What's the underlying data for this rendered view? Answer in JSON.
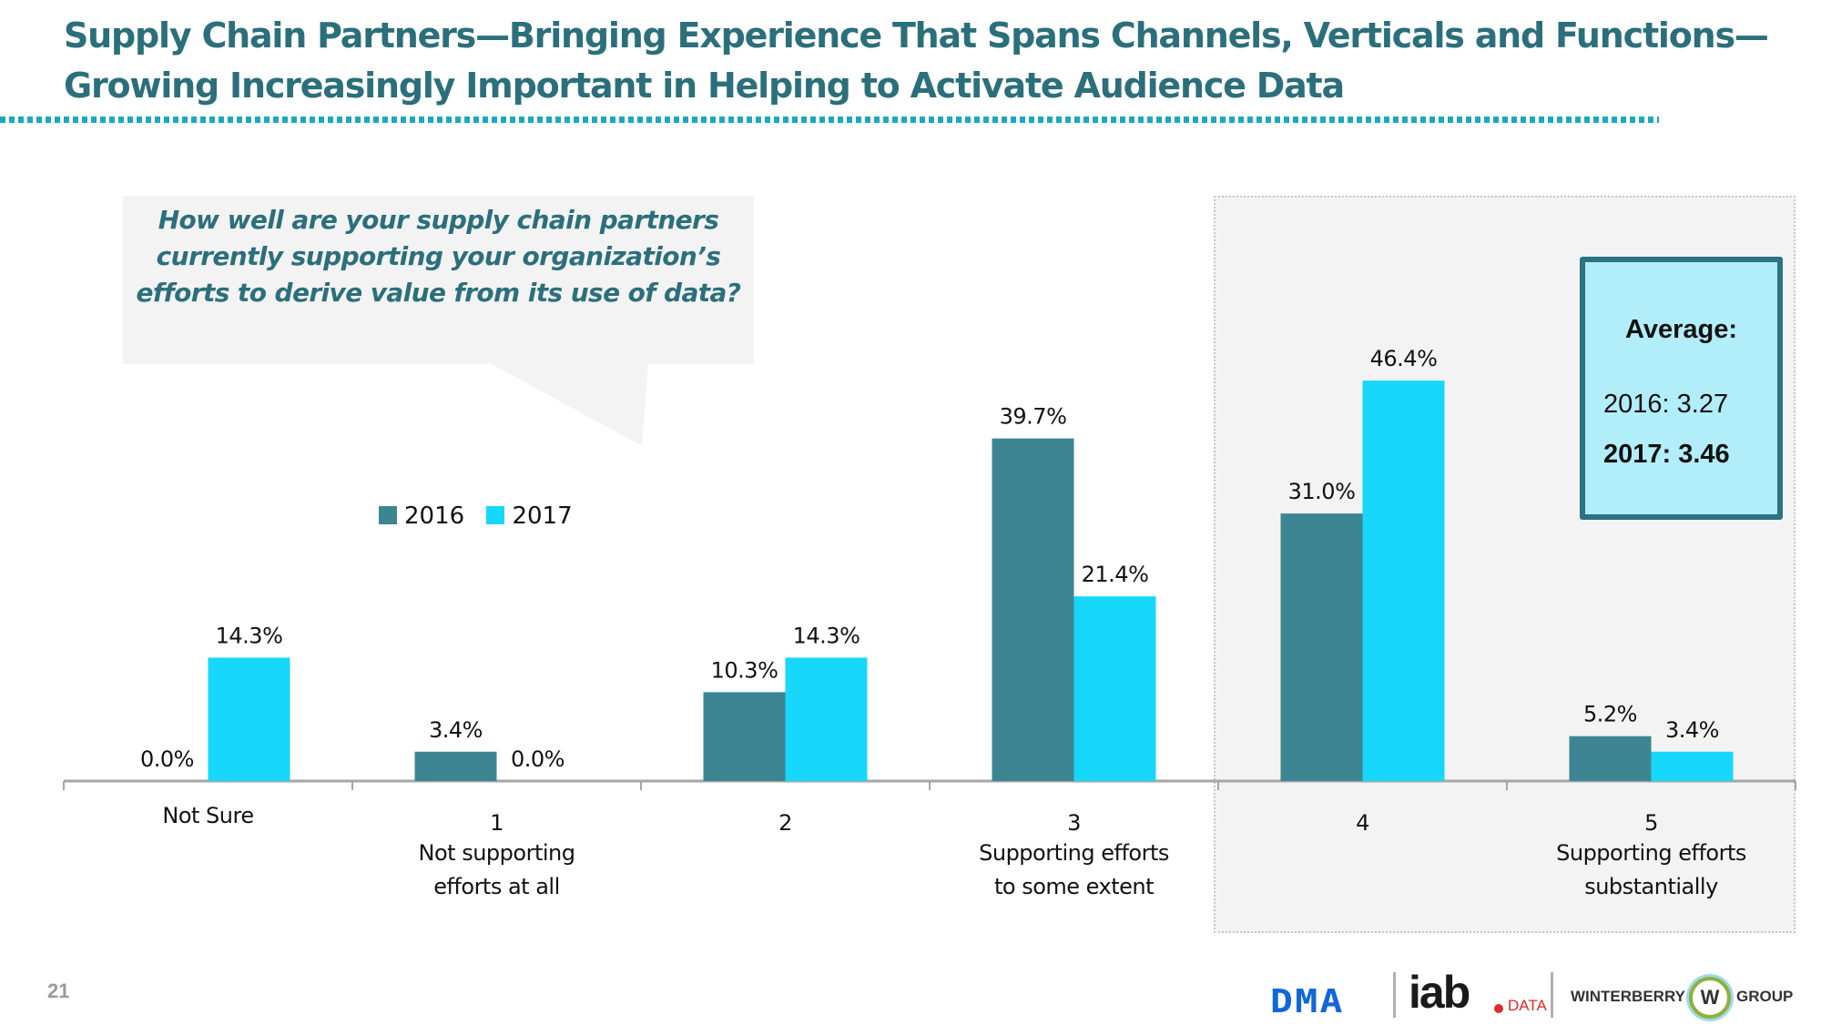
{
  "header": {
    "title_lines": [
      "Supply Chain Partners—Bringing Experience That Spans Channels, Verticals and Functions—",
      "Growing Increasingly Important in Helping to Activate Audience Data"
    ]
  },
  "callout": {
    "question_lines": [
      "How well are your supply chain partners",
      "currently supporting your organization’s",
      "efforts to derive value from its use of data?"
    ]
  },
  "average_box": {
    "title": "Average:",
    "line_2016": "2016: 3.27",
    "line_2017": "2017: 3.46"
  },
  "colors": {
    "series_2016": "#3d8593",
    "series_2017": "#17d7fb",
    "title": "#2b6f7b",
    "accent_dots": "#1ba8c4",
    "highlight_fill": "#f3f3f3",
    "avg_box_fill": "#b1eef9",
    "avg_box_border": "#2a7380"
  },
  "chart_data": {
    "type": "bar",
    "title": "",
    "xlabel": "",
    "ylabel": "",
    "ylim": [
      0,
      50
    ],
    "grid": false,
    "legend_position": "top-left",
    "categories": [
      [
        "Not Sure"
      ],
      [
        "1",
        "Not supporting",
        "efforts at all"
      ],
      [
        "2"
      ],
      [
        "3",
        "Supporting efforts",
        "to some extent"
      ],
      [
        "4"
      ],
      [
        "5",
        "Supporting efforts",
        "substantially"
      ]
    ],
    "series": [
      {
        "name": "2016",
        "values": [
          0.0,
          3.4,
          10.3,
          39.7,
          31.0,
          5.2
        ],
        "labels": [
          "0.0%",
          "3.4%",
          "10.3%",
          "39.7%",
          "31.0%",
          "5.2%"
        ]
      },
      {
        "name": "2017",
        "values": [
          14.3,
          0.0,
          14.3,
          21.4,
          46.4,
          3.4
        ],
        "labels": [
          "14.3%",
          "0.0%",
          "14.3%",
          "21.4%",
          "46.4%",
          "3.4%"
        ]
      }
    ],
    "highlighted_categories": [
      "4",
      "5"
    ]
  },
  "footer": {
    "page_number": "21",
    "logos": {
      "dma": "DMA",
      "iab": "iab",
      "iab_suffix": "DATA",
      "winterberry_left": "WINTERBERRY",
      "winterberry_mark": "W",
      "winterberry_right": "GROUP"
    }
  }
}
